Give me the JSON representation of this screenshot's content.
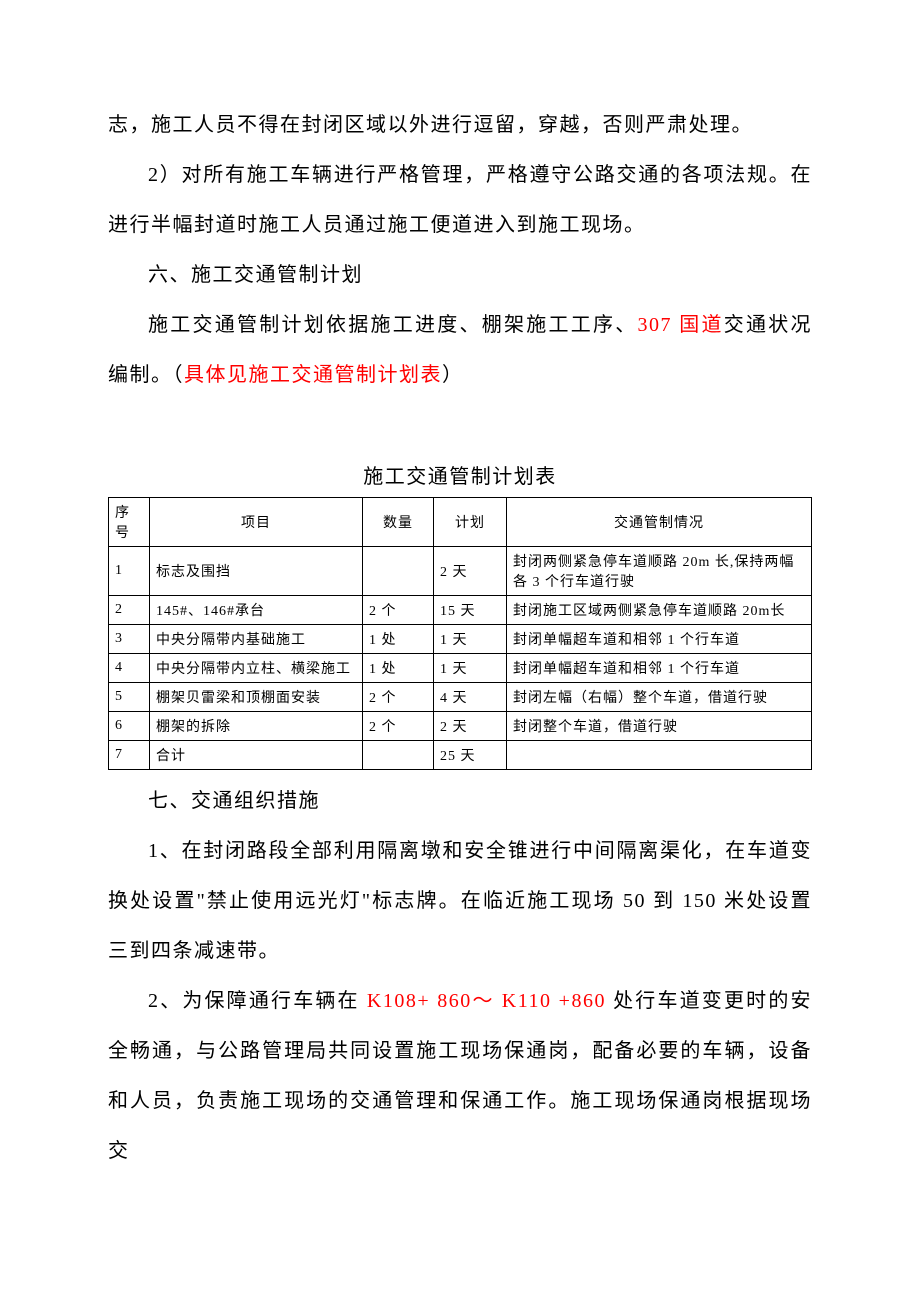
{
  "paragraphs": {
    "p1": "志，施工人员不得在封闭区域以外进行逗留，穿越，否则严肃处理。",
    "p2": "2）对所有施工车辆进行严格管理，严格遵守公路交通的各项法规。在进行半幅封道时施工人员通过施工便道进入到施工现场。",
    "p3": "六、施工交通管制计划",
    "p4_pre": "施工交通管制计划依据施工进度、棚架施工工序、",
    "p4_red1": "307 国道",
    "p4_mid": "交通状况编制。（",
    "p4_red2": "具体见施工交通管制计划表",
    "p4_post": "）",
    "table_title": "施工交通管制计划表",
    "p5": "七、交通组织措施",
    "p6": "1、在封闭路段全部利用隔离墩和安全锥进行中间隔离渠化，在车道变换处设置\"禁止使用远光灯\"标志牌。在临近施工现场 50 到 150 米处设置三到四条减速带。",
    "p7_pre": "2、为保障通行车辆在 ",
    "p7_red": "K108+ 860～ K110 +860",
    "p7_post": " 处行车道变更时的安全畅通，与公路管理局共同设置施工现场保通岗，配备必要的车辆，设备和人员，负责施工现场的交通管理和保通工作。施工现场保通岗根据现场交"
  },
  "table": {
    "columns": {
      "seq_label_line1": "序",
      "seq_label_line2": "号",
      "item": "项目",
      "qty": "数量",
      "plan": "计划",
      "situation": "交通管制情况"
    },
    "rows": [
      {
        "seq": "1",
        "item": "标志及围挡",
        "qty": "",
        "plan": "2 天",
        "situation": "封闭两侧紧急停车道顺路 20m 长,保持两幅各 3 个行车道行驶"
      },
      {
        "seq": "2",
        "item": "145#、146#承台",
        "qty": "2 个",
        "plan": "15 天",
        "situation": "封闭施工区域两侧紧急停车道顺路 20m长"
      },
      {
        "seq": "3",
        "item": "中央分隔带内基础施工",
        "qty": "1 处",
        "plan": "1 天",
        "situation": "封闭单幅超车道和相邻 1 个行车道"
      },
      {
        "seq": "4",
        "item": "中央分隔带内立柱、横梁施工",
        "qty": "1 处",
        "plan": "1 天",
        "situation": "封闭单幅超车道和相邻 1 个行车道"
      },
      {
        "seq": "5",
        "item": "棚架贝雷梁和顶棚面安装",
        "qty": "2 个",
        "plan": "4 天",
        "situation": "封闭左幅（右幅）整个车道，借道行驶"
      },
      {
        "seq": "6",
        "item": "棚架的拆除",
        "qty": "2 个",
        "plan": "2 天",
        "situation": "封闭整个车道，借道行驶"
      },
      {
        "seq": "7",
        "item": "合计",
        "qty": "",
        "plan": "25 天",
        "situation": ""
      }
    ]
  }
}
